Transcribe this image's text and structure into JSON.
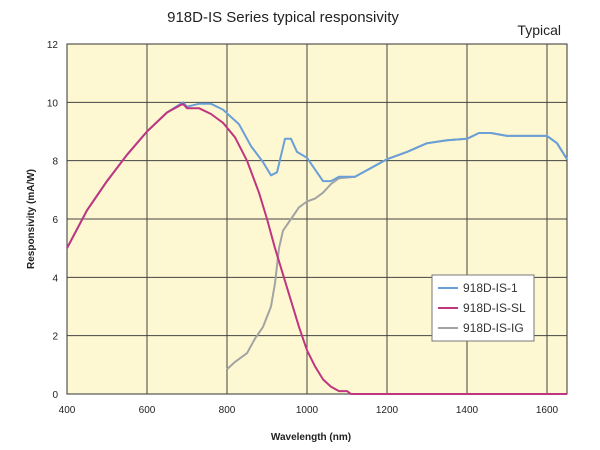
{
  "chart_data": {
    "type": "line",
    "title": "918D-IS Series typical responsivity",
    "annotation": "Typical",
    "xlabel": "Wavelength (nm)",
    "ylabel": "Responsivity  (mA/W)",
    "xlim": [
      400,
      1650
    ],
    "ylim": [
      0,
      12
    ],
    "xticks": [
      400,
      600,
      800,
      1000,
      1200,
      1400,
      1600
    ],
    "yticks": [
      0,
      2,
      4,
      6,
      8,
      10,
      12
    ],
    "grid": true,
    "plot_background": "#fdf8d2",
    "legend_position": "right-middle",
    "series": [
      {
        "name": "918D-IS-1",
        "color": "#6a9fd8",
        "points": [
          [
            400,
            5.0
          ],
          [
            450,
            6.3
          ],
          [
            500,
            7.3
          ],
          [
            550,
            8.2
          ],
          [
            600,
            9.0
          ],
          [
            650,
            9.65
          ],
          [
            690,
            10.0
          ],
          [
            700,
            9.85
          ],
          [
            730,
            9.95
          ],
          [
            760,
            9.95
          ],
          [
            790,
            9.75
          ],
          [
            830,
            9.25
          ],
          [
            860,
            8.5
          ],
          [
            890,
            7.95
          ],
          [
            910,
            7.5
          ],
          [
            925,
            7.6
          ],
          [
            945,
            8.75
          ],
          [
            960,
            8.75
          ],
          [
            975,
            8.3
          ],
          [
            1000,
            8.1
          ],
          [
            1020,
            7.7
          ],
          [
            1040,
            7.3
          ],
          [
            1060,
            7.3
          ],
          [
            1080,
            7.45
          ],
          [
            1120,
            7.45
          ],
          [
            1160,
            7.75
          ],
          [
            1200,
            8.05
          ],
          [
            1250,
            8.3
          ],
          [
            1300,
            8.6
          ],
          [
            1350,
            8.7
          ],
          [
            1400,
            8.75
          ],
          [
            1430,
            8.95
          ],
          [
            1460,
            8.95
          ],
          [
            1500,
            8.85
          ],
          [
            1550,
            8.85
          ],
          [
            1600,
            8.85
          ],
          [
            1625,
            8.6
          ],
          [
            1650,
            8.05
          ]
        ]
      },
      {
        "name": "918D-IS-SL",
        "color": "#c0357f",
        "points": [
          [
            400,
            5.0
          ],
          [
            450,
            6.3
          ],
          [
            500,
            7.3
          ],
          [
            550,
            8.2
          ],
          [
            600,
            9.0
          ],
          [
            650,
            9.65
          ],
          [
            690,
            9.95
          ],
          [
            700,
            9.8
          ],
          [
            730,
            9.8
          ],
          [
            760,
            9.6
          ],
          [
            790,
            9.3
          ],
          [
            820,
            8.8
          ],
          [
            850,
            8.0
          ],
          [
            880,
            6.9
          ],
          [
            900,
            6.0
          ],
          [
            920,
            5.0
          ],
          [
            940,
            4.1
          ],
          [
            960,
            3.2
          ],
          [
            980,
            2.3
          ],
          [
            1000,
            1.5
          ],
          [
            1020,
            0.95
          ],
          [
            1040,
            0.5
          ],
          [
            1060,
            0.25
          ],
          [
            1080,
            0.1
          ],
          [
            1100,
            0.1
          ],
          [
            1110,
            0.0
          ],
          [
            1650,
            0.0
          ]
        ]
      },
      {
        "name": "918D-IS-IG",
        "color": "#a3a3a3",
        "points": [
          [
            800,
            0.85
          ],
          [
            820,
            1.1
          ],
          [
            850,
            1.4
          ],
          [
            870,
            1.9
          ],
          [
            890,
            2.3
          ],
          [
            910,
            3.0
          ],
          [
            920,
            3.8
          ],
          [
            930,
            5.0
          ],
          [
            940,
            5.6
          ],
          [
            960,
            6.0
          ],
          [
            980,
            6.4
          ],
          [
            1000,
            6.6
          ],
          [
            1020,
            6.7
          ],
          [
            1040,
            6.9
          ],
          [
            1060,
            7.2
          ],
          [
            1080,
            7.4
          ],
          [
            1120,
            7.45
          ],
          [
            1160,
            7.75
          ],
          [
            1200,
            8.05
          ],
          [
            1250,
            8.3
          ],
          [
            1300,
            8.6
          ],
          [
            1350,
            8.7
          ],
          [
            1400,
            8.75
          ],
          [
            1430,
            8.95
          ],
          [
            1460,
            8.95
          ],
          [
            1500,
            8.85
          ],
          [
            1550,
            8.85
          ],
          [
            1600,
            8.85
          ],
          [
            1625,
            8.6
          ],
          [
            1650,
            8.05
          ]
        ]
      }
    ]
  }
}
